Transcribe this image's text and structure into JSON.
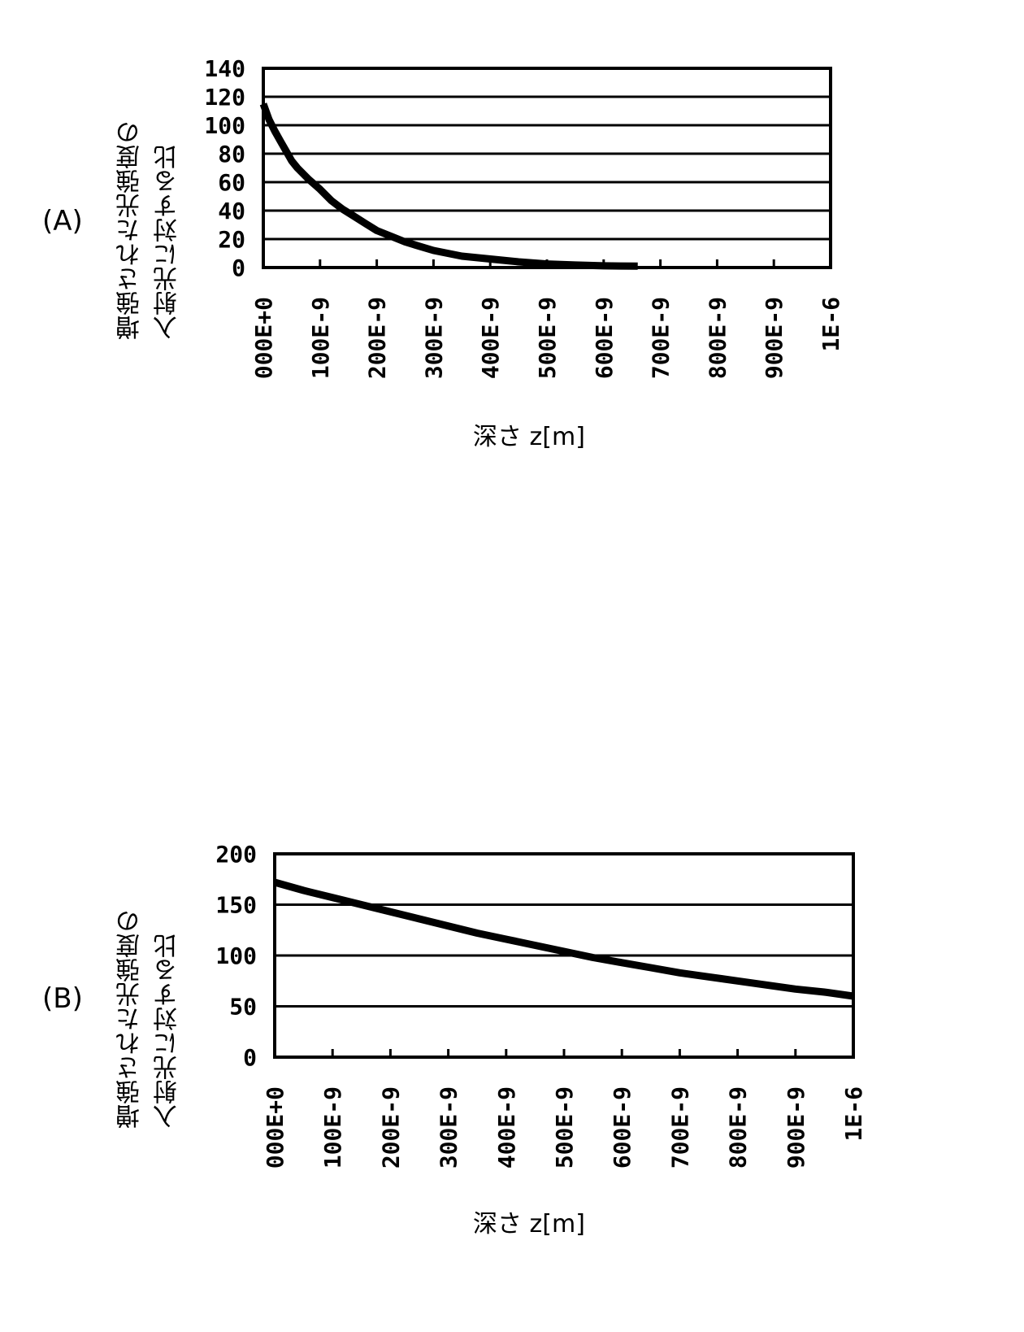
{
  "chart_data": [
    {
      "id": "A",
      "panel_label": "(A)",
      "type": "line",
      "title": "",
      "ylabel_line1": "増強された光強度の",
      "ylabel_line2": "入射光に対する比",
      "xlabel": "深さ z[m]",
      "xlim": [
        0,
        1e-06
      ],
      "ylim": [
        0,
        140
      ],
      "yticks": [
        0,
        20,
        40,
        60,
        80,
        100,
        120,
        140
      ],
      "xtick_labels": [
        "000E+0",
        "100E-9",
        "200E-9",
        "300E-9",
        "400E-9",
        "500E-9",
        "600E-9",
        "700E-9",
        "800E-9",
        "900E-9",
        "1E-6"
      ],
      "grid": "horizontal",
      "legend": "none",
      "series": [
        {
          "name": "enhanced intensity ratio",
          "x_nm": [
            0,
            10,
            20,
            30,
            40,
            50,
            60,
            80,
            100,
            120,
            140,
            160,
            180,
            200,
            225,
            250,
            275,
            300,
            350,
            400,
            450,
            500,
            550,
            600,
            660
          ],
          "values": [
            115,
            104,
            96,
            89,
            82,
            75,
            70,
            62,
            55,
            47,
            41,
            36,
            31,
            26,
            22,
            18,
            15,
            12,
            8,
            6,
            4,
            2.5,
            1.8,
            1.2,
            1
          ]
        }
      ]
    },
    {
      "id": "B",
      "panel_label": "(B)",
      "type": "line",
      "title": "",
      "ylabel_line1": "増強された光強度の",
      "ylabel_line2": "入射光に対する比",
      "xlabel": "深さ z[m]",
      "xlim": [
        0,
        1e-06
      ],
      "ylim": [
        0,
        200
      ],
      "yticks": [
        0,
        50,
        100,
        150,
        200
      ],
      "xtick_labels": [
        "000E+0",
        "100E-9",
        "200E-9",
        "300E-9",
        "400E-9",
        "500E-9",
        "600E-9",
        "700E-9",
        "800E-9",
        "900E-9",
        "1E-6"
      ],
      "grid": "horizontal",
      "legend": "none",
      "series": [
        {
          "name": "enhanced intensity ratio",
          "x_nm": [
            0,
            50,
            100,
            150,
            200,
            250,
            300,
            350,
            400,
            450,
            500,
            550,
            600,
            650,
            700,
            750,
            800,
            850,
            900,
            950,
            1000
          ],
          "values": [
            172,
            164,
            157,
            150,
            143,
            136,
            129,
            122,
            116,
            110,
            104,
            98,
            93,
            88,
            83,
            79,
            75,
            71,
            67,
            64,
            60
          ]
        }
      ]
    }
  ]
}
